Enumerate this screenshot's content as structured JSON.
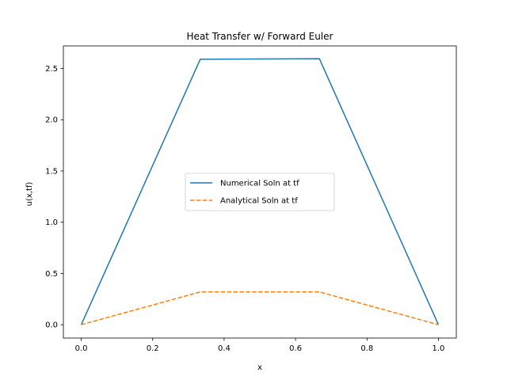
{
  "chart_data": {
    "type": "line",
    "title": "Heat Transfer w/ Forward Euler",
    "xlabel": "x",
    "ylabel": "u(x,tf)",
    "xlim": [
      -0.05,
      1.05
    ],
    "ylim": [
      -0.13,
      2.72
    ],
    "xticks": [
      0.0,
      0.2,
      0.4,
      0.6,
      0.8,
      1.0
    ],
    "xtick_labels": [
      "0.0",
      "0.2",
      "0.4",
      "0.6",
      "0.8",
      "1.0"
    ],
    "yticks": [
      0.0,
      0.5,
      1.0,
      1.5,
      2.0,
      2.5
    ],
    "ytick_labels": [
      "0.0",
      "0.5",
      "1.0",
      "1.5",
      "2.0",
      "2.5"
    ],
    "grid": false,
    "legend_position": "center",
    "series": [
      {
        "name": "Numerical Soln at tf",
        "color": "#1f77b4",
        "style": "solid",
        "x": [
          0.0,
          0.3333,
          0.6667,
          1.0
        ],
        "y": [
          0.0,
          2.59,
          2.595,
          0.0
        ]
      },
      {
        "name": "Analytical Soln at tf",
        "color": "#ff7f0e",
        "style": "dashed",
        "x": [
          0.0,
          0.3333,
          0.6667,
          1.0
        ],
        "y": [
          0.0,
          0.32,
          0.32,
          0.0
        ]
      }
    ]
  }
}
